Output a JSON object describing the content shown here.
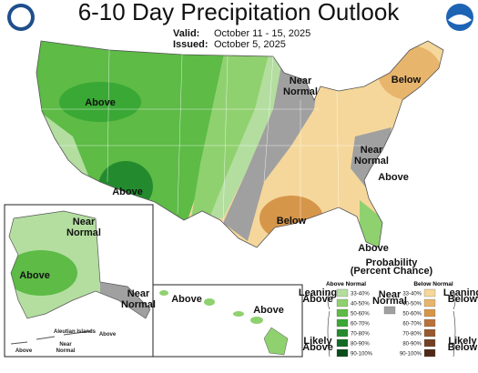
{
  "header": {
    "title": "6-10 Day Precipitation Outlook",
    "valid_label": "Valid:",
    "valid_dates": "October 11 - 15, 2025",
    "issued_label": "Issued:",
    "issued_date": "October 5, 2025"
  },
  "map_labels": [
    {
      "lines": [
        "Above"
      ]
    },
    {
      "lines": [
        "Above"
      ]
    },
    {
      "lines": [
        "Near",
        "Normal"
      ]
    },
    {
      "lines": [
        "Below"
      ]
    },
    {
      "lines": [
        "Near",
        "Normal"
      ]
    },
    {
      "lines": [
        "Above"
      ]
    },
    {
      "lines": [
        "Below"
      ]
    },
    {
      "lines": [
        "Above"
      ]
    }
  ],
  "alaska_labels": [
    {
      "lines": [
        "Near",
        "Normal"
      ]
    },
    {
      "lines": [
        "Above"
      ]
    },
    {
      "lines": [
        "Near",
        "Normal"
      ]
    },
    {
      "lines": [
        "Aleutian Islands"
      ]
    },
    {
      "lines": [
        "Above"
      ]
    },
    {
      "lines": [
        "Near",
        "Normal"
      ]
    },
    {
      "lines": [
        "Above"
      ]
    }
  ],
  "hawaii_labels": [
    {
      "lines": [
        "Above"
      ]
    },
    {
      "lines": [
        "Above"
      ]
    }
  ],
  "legend": {
    "title": [
      "Probability",
      "(Percent Chance)"
    ],
    "above_normal": {
      "title": "Above Normal",
      "leaning": [
        "Leaning",
        "Above"
      ],
      "likely": [
        "Likely",
        "Above"
      ],
      "bins": [
        {
          "label": "33-40%",
          "color": "#b3dea0"
        },
        {
          "label": "40-50%",
          "color": "#8fd16f"
        },
        {
          "label": "50-60%",
          "color": "#5dbb46"
        },
        {
          "label": "60-70%",
          "color": "#3aa835"
        },
        {
          "label": "70-80%",
          "color": "#238b2e"
        },
        {
          "label": "80-90%",
          "color": "#126b25"
        },
        {
          "label": "90-100%",
          "color": "#084d1a"
        }
      ]
    },
    "near_normal": {
      "title": [
        "Near",
        "Normal"
      ],
      "color": "#a0a0a0"
    },
    "below_normal": {
      "title": "Below Normal",
      "leaning": [
        "Leaning",
        "Below"
      ],
      "likely": [
        "Likely",
        "Below"
      ],
      "bins": [
        {
          "label": "33-40%",
          "color": "#f5d79b"
        },
        {
          "label": "40-50%",
          "color": "#e8b56d"
        },
        {
          "label": "50-60%",
          "color": "#d6964a"
        },
        {
          "label": "60-70%",
          "color": "#b9733a"
        },
        {
          "label": "70-80%",
          "color": "#965a2e"
        },
        {
          "label": "80-90%",
          "color": "#724022"
        },
        {
          "label": "90-100%",
          "color": "#4e2a16"
        }
      ]
    }
  }
}
